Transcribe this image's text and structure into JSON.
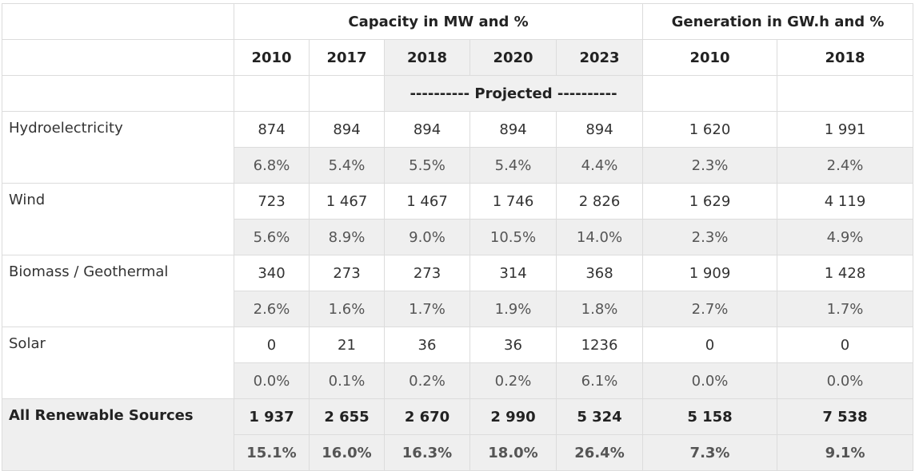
{
  "header": {
    "capacity_label": "Capacity in MW and %",
    "generation_label": "Generation in GW.h and %",
    "years": [
      "2010",
      "2017",
      "2018",
      "2020",
      "2023",
      "2010",
      "2018"
    ],
    "projected_label": "---------- Projected ----------"
  },
  "rows": [
    {
      "label": "Hydroelectricity",
      "values": [
        "874",
        "894",
        "894",
        "894",
        "894",
        "1 620",
        "1 991"
      ],
      "percents": [
        "6.8%",
        "5.4%",
        "5.5%",
        "5.4%",
        "4.4%",
        "2.3%",
        "2.4%"
      ]
    },
    {
      "label": "Wind",
      "values": [
        "723",
        "1 467",
        "1 467",
        "1 746",
        "2 826",
        "1 629",
        "4 119"
      ],
      "percents": [
        "5.6%",
        "8.9%",
        "9.0%",
        "10.5%",
        "14.0%",
        "2.3%",
        "4.9%"
      ]
    },
    {
      "label": "Biomass / Geothermal",
      "values": [
        "340",
        "273",
        "273",
        "314",
        "368",
        "1 909",
        "1 428"
      ],
      "percents": [
        "2.6%",
        "1.6%",
        "1.7%",
        "1.9%",
        "1.8%",
        "2.7%",
        "1.7%"
      ]
    },
    {
      "label": "Solar",
      "values": [
        "0",
        "21",
        "36",
        "36",
        "1236",
        "0",
        "0"
      ],
      "percents": [
        "0.0%",
        "0.1%",
        "0.2%",
        "0.2%",
        "6.1%",
        "0.0%",
        "0.0%"
      ]
    },
    {
      "label": "All Renewable Sources",
      "values": [
        "1 937",
        "2 655",
        "2 670",
        "2 990",
        "5 324",
        "5 158",
        "7 538"
      ],
      "percents": [
        "15.1%",
        "16.0%",
        "16.3%",
        "18.0%",
        "26.4%",
        "7.3%",
        "9.1%"
      ]
    }
  ]
}
